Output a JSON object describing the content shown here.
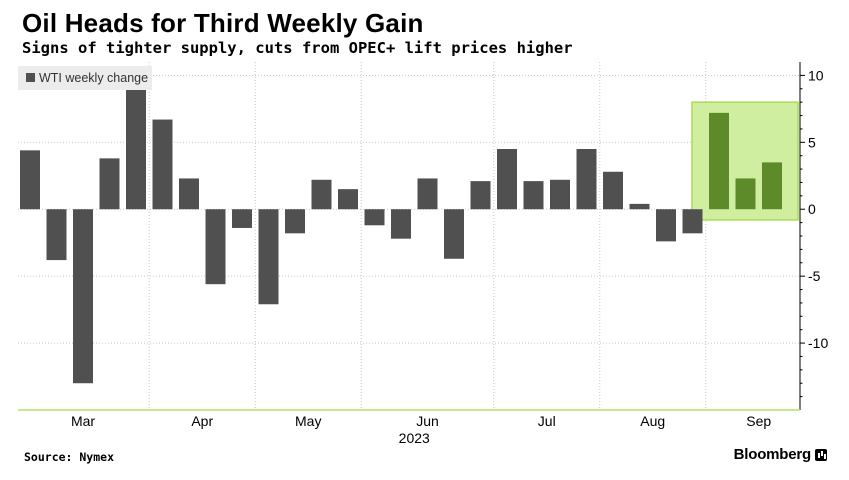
{
  "header": {
    "title": "Oil Heads for Third Weekly Gain",
    "subtitle": "Signs of tighter supply, cuts from OPEC+ lift prices higher"
  },
  "footer": {
    "source": "Source: Nymex",
    "brand": "Bloomberg"
  },
  "colors": {
    "bar": "#505050",
    "bar_highlight": "#5d8b2a",
    "highlight_fill": "#d0ee9f",
    "highlight_border": "#a9dc55",
    "grid": "#c8c8c8",
    "legend_bg": "#ececec"
  },
  "chart_data": {
    "type": "bar",
    "title": "Oil Heads for Third Weekly Gain",
    "subtitle": "Signs of tighter supply, cuts from OPEC+ lift prices higher",
    "legend": [
      "WTI weekly change"
    ],
    "legend_position": "top-left",
    "series": [
      {
        "name": "WTI weekly change",
        "values": [
          4.4,
          -3.8,
          -13.0,
          3.8,
          9.3,
          6.7,
          2.3,
          -5.6,
          -1.4,
          -7.1,
          -1.8,
          2.2,
          1.5,
          -1.2,
          -2.2,
          2.3,
          -3.7,
          2.1,
          4.5,
          2.1,
          2.2,
          4.5,
          2.8,
          0.4,
          -2.4,
          -1.8,
          7.2,
          2.3,
          3.5
        ]
      }
    ],
    "highlighted_last_n": 3,
    "x_tick_labels": [
      "Mar",
      "Apr",
      "May",
      "Jun",
      "Jul",
      "Aug",
      "Sep"
    ],
    "x_year_label": "2023",
    "yticks": [
      10,
      5,
      0,
      -5,
      -10
    ],
    "ylim": [
      -15,
      11
    ],
    "y_axis_side": "right",
    "grid": true
  }
}
